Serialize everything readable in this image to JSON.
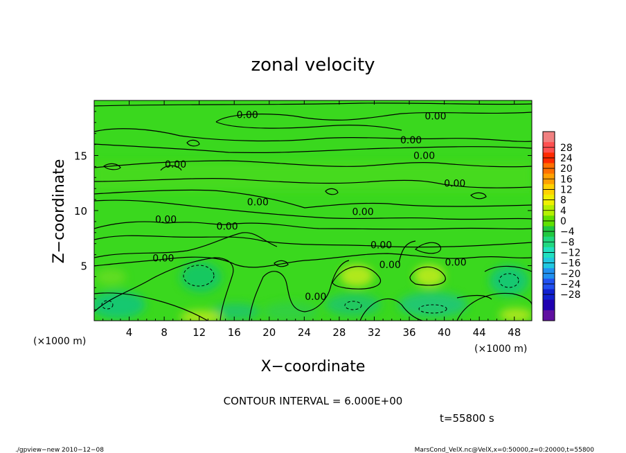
{
  "chart_data": {
    "type": "heatmap",
    "title": "zonal velocity",
    "xlabel": "X−coordinate",
    "ylabel": "Z−coordinate",
    "x_unit_left": "(×1000 m)",
    "x_unit_right": "(×1000 m)",
    "xlim": [
      0,
      50
    ],
    "ylim": [
      0,
      20
    ],
    "x_ticks": [
      "4",
      "8",
      "12",
      "16",
      "20",
      "24",
      "28",
      "32",
      "36",
      "40",
      "44",
      "48"
    ],
    "y_ticks": [
      "5",
      "10",
      "15"
    ],
    "contour_interval_text": "CONTOUR INTERVAL = 6.000E+00",
    "time_text": "t=55800 s",
    "contour_labels": [
      {
        "text": "0.00",
        "x": 17.5,
        "z": 18.7
      },
      {
        "text": "0.00",
        "x": 39.0,
        "z": 18.6
      },
      {
        "text": "0.00",
        "x": 36.2,
        "z": 16.4
      },
      {
        "text": "0.00",
        "x": 37.7,
        "z": 15.0
      },
      {
        "text": "0.00",
        "x": 9.3,
        "z": 14.2
      },
      {
        "text": "0.00",
        "x": 41.2,
        "z": 12.5
      },
      {
        "text": "0.00",
        "x": 18.7,
        "z": 10.8
      },
      {
        "text": "0.00",
        "x": 30.7,
        "z": 9.9
      },
      {
        "text": "0.00",
        "x": 8.2,
        "z": 9.2
      },
      {
        "text": "0.00",
        "x": 15.2,
        "z": 8.6
      },
      {
        "text": "0.00",
        "x": 32.8,
        "z": 6.9
      },
      {
        "text": "0.00",
        "x": 7.9,
        "z": 5.7
      },
      {
        "text": "0.00",
        "x": 33.8,
        "z": 5.1
      },
      {
        "text": "0.00",
        "x": 41.3,
        "z": 5.3
      },
      {
        "text": "0.00",
        "x": 25.3,
        "z": 2.2
      }
    ],
    "colorbar": {
      "tick_labels": [
        "28",
        "24",
        "20",
        "16",
        "12",
        "8",
        "4",
        "0",
        "−4",
        "−8",
        "−12",
        "−16",
        "−20",
        "−24",
        "−28"
      ],
      "colors": [
        "#f08080",
        "#ff5050",
        "#ff2a00",
        "#ff7000",
        "#ffa000",
        "#ffd200",
        "#f0f000",
        "#b4f000",
        "#60e000",
        "#20c840",
        "#20d880",
        "#20e0c0",
        "#20c8e0",
        "#2090f0",
        "#2050f0",
        "#1020d0",
        "#2000b0",
        "#6010a0"
      ]
    }
  },
  "footer": {
    "left": "./gpview−new   2010−12−08",
    "right": "MarsCond_VelX.nc@VelX,x=0:50000,z=0:20000,t=55800"
  }
}
